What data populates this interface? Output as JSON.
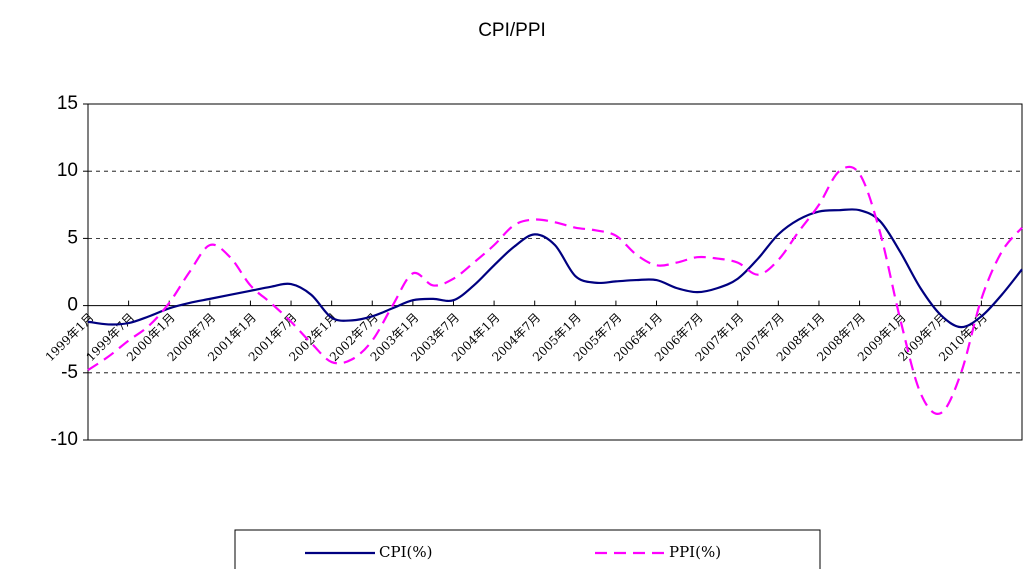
{
  "chart_data": {
    "type": "line",
    "title": "CPI/PPI",
    "categories": [
      "1999年1月",
      null,
      "1999年7月",
      null,
      "2000年1月",
      null,
      "2000年7月",
      null,
      "2001年1月",
      null,
      "2001年7月",
      null,
      "2002年1月",
      null,
      "2002年7月",
      null,
      "2003年1月",
      null,
      "2003年7月",
      null,
      "2004年1月",
      null,
      "2004年7月",
      null,
      "2005年1月",
      null,
      "2005年7月",
      null,
      "2006年1月",
      null,
      "2006年7月",
      null,
      "2007年1月",
      null,
      "2007年7月",
      null,
      "2008年1月",
      null,
      "2008年7月",
      null,
      "2009年1月",
      null,
      "2009年7月",
      null,
      "2010年1月",
      null,
      null
    ],
    "series": [
      {
        "name": "CPI(%)",
        "color": "#000080",
        "dash": false,
        "values": [
          -1.2,
          -1.4,
          -1.3,
          -0.8,
          -0.2,
          0.2,
          0.5,
          0.8,
          1.1,
          1.4,
          1.6,
          0.8,
          -0.9,
          -1.1,
          -0.8,
          -0.2,
          0.4,
          0.5,
          0.4,
          1.5,
          3.0,
          4.4,
          5.3,
          4.5,
          2.2,
          1.7,
          1.8,
          1.9,
          1.9,
          1.3,
          1.0,
          1.3,
          2.0,
          3.5,
          5.3,
          6.4,
          7.0,
          7.1,
          7.1,
          6.3,
          4.0,
          1.3,
          -0.7,
          -1.6,
          -0.8,
          0.8,
          2.7
        ]
      },
      {
        "name": "PPI(%)",
        "color": "#ff00ff",
        "dash": true,
        "values": [
          -4.8,
          -3.8,
          -2.6,
          -1.5,
          0.2,
          2.5,
          4.5,
          3.6,
          1.5,
          0.2,
          -1.2,
          -2.8,
          -4.2,
          -4.0,
          -2.6,
          0.0,
          2.4,
          1.5,
          2.0,
          3.2,
          4.5,
          6.0,
          6.4,
          6.2,
          5.8,
          5.6,
          5.2,
          3.8,
          3.0,
          3.2,
          3.6,
          3.5,
          3.2,
          2.3,
          3.4,
          5.5,
          7.5,
          10.0,
          9.8,
          5.5,
          -1.0,
          -6.5,
          -8.0,
          -5.0,
          0.5,
          4.0,
          5.8
        ]
      }
    ],
    "ylim": [
      -10,
      15
    ],
    "yticks": [
      -10,
      -5,
      0,
      5,
      10,
      15
    ],
    "grid": true,
    "legend": "bottom"
  }
}
